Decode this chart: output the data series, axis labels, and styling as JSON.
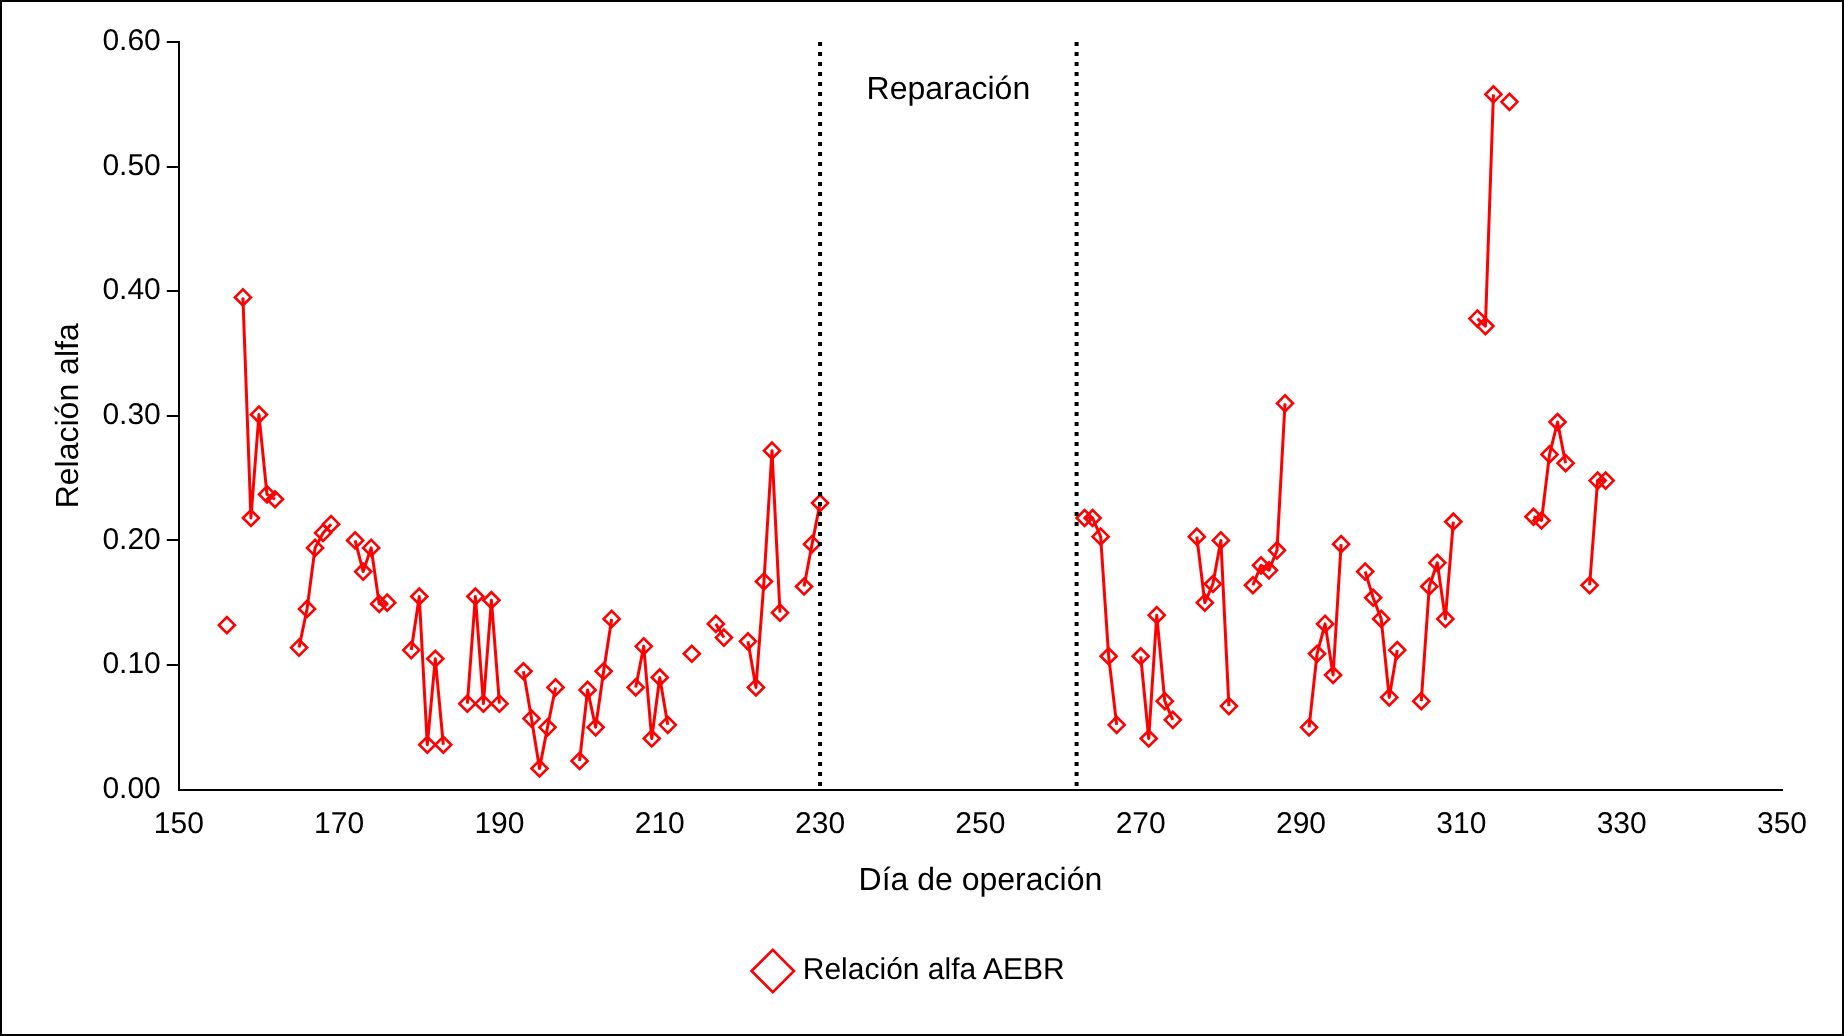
{
  "chart_data": {
    "type": "line",
    "xlabel": "Día de operación",
    "ylabel": "Relación alfa",
    "xlim": [
      150,
      350
    ],
    "xticks": [
      150,
      170,
      190,
      210,
      230,
      250,
      270,
      290,
      310,
      330,
      350
    ],
    "ylim": [
      0,
      0.6
    ],
    "yticks": [
      {
        "value": 0,
        "label": "0.00"
      },
      {
        "value": 0.1,
        "label": "0.10"
      },
      {
        "value": 0.2,
        "label": "0.20"
      },
      {
        "value": 0.3,
        "label": "0.30"
      },
      {
        "value": 0.4,
        "label": "0.40"
      },
      {
        "value": 0.5,
        "label": "0.50"
      },
      {
        "value": 0.6,
        "label": "0.60"
      }
    ],
    "grid": false,
    "legend": "bottom",
    "marker": "diamond",
    "line_style": "solid",
    "ref_lines": [
      {
        "axis": "x",
        "value": 230,
        "line_style": "dotted",
        "color": "#000000"
      },
      {
        "axis": "x",
        "value": 262,
        "line_style": "dotted",
        "color": "#000000"
      }
    ],
    "annotations": [
      "Reparación"
    ],
    "series": [
      {
        "name": "Relación alfa AEBR",
        "color": "#ff0000",
        "x": [
          156,
          157,
          158,
          159,
          160,
          161,
          162,
          163,
          165,
          166,
          167,
          168,
          169,
          170,
          172,
          173,
          174,
          175,
          176,
          177,
          179,
          180,
          181,
          182,
          183,
          184,
          186,
          187,
          188,
          189,
          190,
          191,
          193,
          194,
          195,
          196,
          197,
          198,
          200,
          201,
          202,
          203,
          204,
          205,
          207,
          208,
          209,
          210,
          211,
          212,
          214,
          215,
          217,
          218,
          219,
          221,
          222,
          223,
          224,
          225,
          226,
          228,
          229,
          230,
          246,
          263,
          264,
          265,
          266,
          267,
          268,
          270,
          271,
          272,
          273,
          274,
          275,
          277,
          278,
          279,
          280,
          281,
          282,
          284,
          285,
          286,
          287,
          288,
          289,
          291,
          292,
          293,
          294,
          295,
          296,
          298,
          299,
          300,
          301,
          302,
          303,
          305,
          306,
          307,
          308,
          309,
          310,
          312,
          313,
          314,
          315,
          316,
          317,
          319,
          320,
          321,
          322,
          323,
          324,
          326,
          327,
          328
        ],
        "values": [
          0.132,
          null,
          0.395,
          0.218,
          0.301,
          0.237,
          0.233,
          null,
          0.114,
          0.145,
          0.194,
          0.206,
          0.213,
          null,
          0.2,
          0.175,
          0.194,
          0.149,
          0.15,
          null,
          0.112,
          0.155,
          0.036,
          0.105,
          0.036,
          null,
          0.069,
          0.155,
          0.069,
          0.152,
          0.069,
          null,
          0.095,
          0.057,
          0.017,
          0.05,
          0.082,
          null,
          0.023,
          0.08,
          0.05,
          0.095,
          0.137,
          null,
          0.082,
          0.115,
          0.041,
          0.09,
          0.052,
          null,
          0.109,
          null,
          0.133,
          0.122,
          null,
          0.119,
          0.082,
          0.167,
          0.272,
          0.142,
          null,
          0.163,
          0.197,
          0.23,
          null,
          0.218,
          0.218,
          0.203,
          0.107,
          0.052,
          null,
          0.107,
          0.041,
          0.14,
          0.071,
          0.056,
          null,
          0.203,
          0.15,
          0.165,
          0.2,
          0.067,
          null,
          0.164,
          0.18,
          0.176,
          0.192,
          0.31,
          null,
          0.05,
          0.109,
          0.133,
          0.092,
          0.197,
          null,
          0.175,
          0.154,
          0.137,
          0.074,
          0.112,
          null,
          0.071,
          0.163,
          0.182,
          0.137,
          0.215,
          null,
          0.378,
          0.372,
          0.558,
          null,
          0.552,
          null,
          0.219,
          0.216,
          0.269,
          0.295,
          0.262,
          null,
          0.164,
          0.248,
          0.248
        ]
      }
    ]
  }
}
